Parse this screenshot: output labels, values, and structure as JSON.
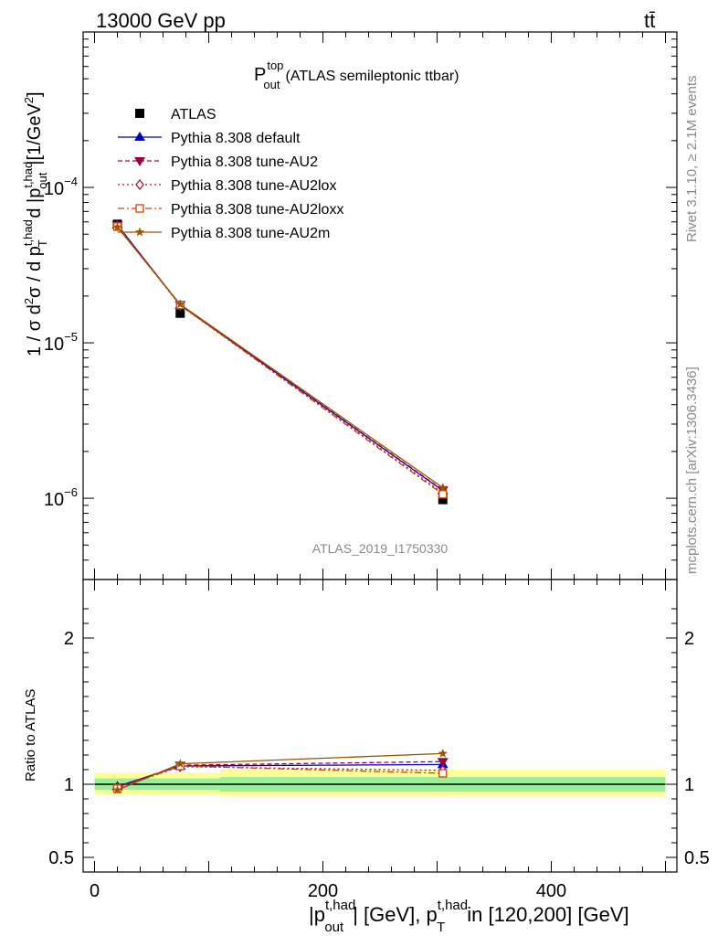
{
  "header": {
    "energy_label": "13000 GeV pp",
    "process_label": "tt̄"
  },
  "side_labels": {
    "rivet": "Rivet 3.1.10, ≥ 2.1M events",
    "mcplots": "mcplots.cern.ch [arXiv:1306.3436]"
  },
  "watermark": "ATLAS_2019_I1750330",
  "chart_data": [
    {
      "type": "line",
      "panel": "main",
      "title": "P_out^top (ATLAS semileptonic ttbar)",
      "title_main": "P",
      "title_sup": "top",
      "title_sub": "out",
      "title_rest": "(ATLAS semileptonic ttbar)",
      "ylabel": "1 / σ d²σ / d p_T^{t,had} d |p_out^{t,had}| [1/GeV²]",
      "yscale": "log",
      "ylim": [
        3e-07,
        0.001
      ],
      "xlim": [
        -10,
        510
      ],
      "y_tick_labels": [
        {
          "value": 0.0001,
          "base": "10",
          "exp": "−4"
        },
        {
          "value": 1e-05,
          "base": "10",
          "exp": "−5"
        },
        {
          "value": 1e-06,
          "base": "10",
          "exp": "−6"
        }
      ],
      "legend_position": "top-left",
      "series": [
        {
          "name": "ATLAS",
          "color": "#000000",
          "marker": "square",
          "dash": "none",
          "x": [
            20,
            75,
            305
          ],
          "y": [
            5.8e-05,
            1.55e-05,
            9.8e-07
          ]
        },
        {
          "name": "Pythia 8.308 default",
          "color": "#0000cc",
          "marker": "triangle-up",
          "dash": "none",
          "x": [
            20,
            75,
            305
          ],
          "y": [
            5.75e-05,
            1.75e-05,
            1.12e-06
          ]
        },
        {
          "name": "Pythia 8.308 tune-AU2",
          "color": "#990044",
          "marker": "triangle-down",
          "dash": "5,3",
          "x": [
            20,
            75,
            305
          ],
          "y": [
            5.7e-05,
            1.76e-05,
            1.13e-06
          ]
        },
        {
          "name": "Pythia 8.308 tune-AU2lox",
          "color": "#aa1133",
          "marker": "diamond-open",
          "dash": "2,3",
          "x": [
            20,
            75,
            305
          ],
          "y": [
            5.65e-05,
            1.74e-05,
            1.08e-06
          ]
        },
        {
          "name": "Pythia 8.308 tune-AU2loxx",
          "color": "#cc4400",
          "marker": "square-open",
          "dash": "7,3,2,3",
          "x": [
            20,
            75,
            305
          ],
          "y": [
            5.6e-05,
            1.75e-05,
            1.06e-06
          ]
        },
        {
          "name": "Pythia 8.308 tune-AU2m",
          "color": "#995500",
          "marker": "star",
          "dash": "none",
          "x": [
            20,
            75,
            305
          ],
          "y": [
            5.55e-05,
            1.77e-05,
            1.17e-06
          ]
        }
      ]
    },
    {
      "type": "line",
      "panel": "ratio",
      "ylabel": "Ratio to ATLAS",
      "ylim": [
        0.4,
        2.4
      ],
      "xlim": [
        -10,
        510
      ],
      "y_ticks": [
        0.5,
        1,
        2
      ],
      "y_tick_labels": [
        "0.5",
        "1",
        "2"
      ],
      "x_ticks": [
        0,
        200,
        400
      ],
      "x_tick_labels": [
        "0",
        "200",
        "400"
      ],
      "xlabel_parts": {
        "p1": "|p",
        "p1_sup": "t,had",
        "p1_sub": "out",
        "mid": "| [GeV], p",
        "p2_sup": "t,had",
        "p2_sub": "T",
        "rest": "in [120,200] [GeV]"
      },
      "uncertainty_bands": [
        {
          "x0": 0,
          "x1": 110,
          "green": [
            0.96,
            1.04
          ],
          "yellow": [
            0.93,
            1.08
          ]
        },
        {
          "x0": 110,
          "x1": 500,
          "green": [
            0.95,
            1.05
          ],
          "yellow": [
            0.92,
            1.1
          ]
        }
      ],
      "series": [
        {
          "name": "Pythia 8.308 default",
          "x": [
            20,
            75,
            305
          ],
          "y": [
            0.985,
            1.125,
            1.135
          ]
        },
        {
          "name": "Pythia 8.308 tune-AU2",
          "x": [
            20,
            75,
            305
          ],
          "y": [
            0.98,
            1.13,
            1.155
          ]
        },
        {
          "name": "Pythia 8.308 tune-AU2lox",
          "x": [
            20,
            75,
            305
          ],
          "y": [
            0.975,
            1.12,
            1.095
          ]
        },
        {
          "name": "Pythia 8.308 tune-AU2loxx",
          "x": [
            20,
            75,
            305
          ],
          "y": [
            0.97,
            1.125,
            1.075
          ]
        },
        {
          "name": "Pythia 8.308 tune-AU2m",
          "x": [
            20,
            75,
            305
          ],
          "y": [
            0.96,
            1.14,
            1.21
          ]
        }
      ]
    }
  ]
}
